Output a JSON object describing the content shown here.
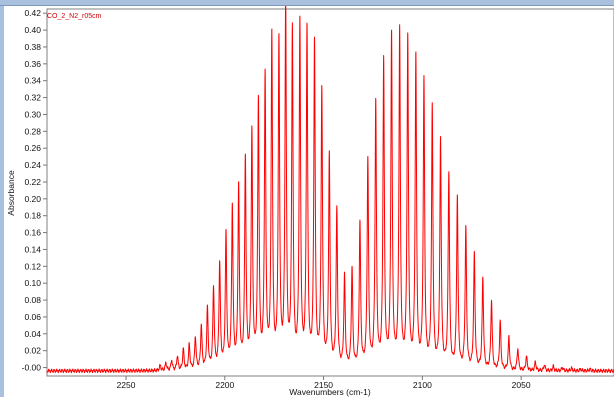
{
  "chart_data": {
    "type": "line",
    "series": [
      {
        "name": "CO_2_N2_r05cm",
        "color": "#ff0000"
      }
    ],
    "xlabel": "Wavenumbers (cm-1)",
    "ylabel": "Absorbance",
    "xlim": [
      2290,
      2003
    ],
    "ylim": [
      -0.01,
      0.425
    ],
    "x_ticks": [
      "2250",
      "2200",
      "2150",
      "2100",
      "2050"
    ],
    "y_ticks": [
      "-0.00",
      "0.02",
      "0.04",
      "0.06",
      "0.08",
      "0.10",
      "0.12",
      "0.14",
      "0.16",
      "0.18",
      "0.20",
      "0.22",
      "0.24",
      "0.26",
      "0.28",
      "0.30",
      "0.32",
      "0.34",
      "0.36",
      "0.38",
      "0.40",
      "0.42"
    ],
    "r_branch_peaks": [
      {
        "x": 2139.4,
        "y": 0.108
      },
      {
        "x": 2143.3,
        "y": 0.187
      },
      {
        "x": 2147.1,
        "y": 0.25
      },
      {
        "x": 2150.9,
        "y": 0.328
      },
      {
        "x": 2154.6,
        "y": 0.385
      },
      {
        "x": 2158.4,
        "y": 0.398
      },
      {
        "x": 2162.0,
        "y": 0.404
      },
      {
        "x": 2165.8,
        "y": 0.396
      },
      {
        "x": 2169.2,
        "y": 0.43
      },
      {
        "x": 2172.6,
        "y": 0.382
      },
      {
        "x": 2176.2,
        "y": 0.391
      },
      {
        "x": 2179.6,
        "y": 0.342
      },
      {
        "x": 2183.0,
        "y": 0.313
      },
      {
        "x": 2186.3,
        "y": 0.277
      },
      {
        "x": 2189.6,
        "y": 0.246
      },
      {
        "x": 2193.0,
        "y": 0.213
      },
      {
        "x": 2196.2,
        "y": 0.19
      },
      {
        "x": 2199.4,
        "y": 0.158
      },
      {
        "x": 2202.6,
        "y": 0.125
      },
      {
        "x": 2205.7,
        "y": 0.096
      },
      {
        "x": 2208.8,
        "y": 0.072
      },
      {
        "x": 2211.9,
        "y": 0.052
      },
      {
        "x": 2214.9,
        "y": 0.039
      },
      {
        "x": 2218.0,
        "y": 0.03
      },
      {
        "x": 2221.0,
        "y": 0.025
      },
      {
        "x": 2224.0,
        "y": 0.017
      },
      {
        "x": 2226.9,
        "y": 0.012
      },
      {
        "x": 2229.8,
        "y": 0.009
      },
      {
        "x": 2232.7,
        "y": 0.006
      }
    ],
    "p_branch_peaks": [
      {
        "x": 2135.6,
        "y": 0.118
      },
      {
        "x": 2131.6,
        "y": 0.172
      },
      {
        "x": 2127.6,
        "y": 0.246
      },
      {
        "x": 2123.6,
        "y": 0.313
      },
      {
        "x": 2119.6,
        "y": 0.362
      },
      {
        "x": 2115.6,
        "y": 0.393
      },
      {
        "x": 2111.5,
        "y": 0.398
      },
      {
        "x": 2107.4,
        "y": 0.389
      },
      {
        "x": 2103.3,
        "y": 0.366
      },
      {
        "x": 2099.2,
        "y": 0.338
      },
      {
        "x": 2095.0,
        "y": 0.307
      },
      {
        "x": 2090.8,
        "y": 0.27
      },
      {
        "x": 2086.6,
        "y": 0.231
      },
      {
        "x": 2082.3,
        "y": 0.203
      },
      {
        "x": 2078.0,
        "y": 0.167
      },
      {
        "x": 2073.7,
        "y": 0.136
      },
      {
        "x": 2069.4,
        "y": 0.108
      },
      {
        "x": 2065.0,
        "y": 0.082
      },
      {
        "x": 2060.6,
        "y": 0.058
      },
      {
        "x": 2056.2,
        "y": 0.039
      },
      {
        "x": 2051.7,
        "y": 0.026
      },
      {
        "x": 2047.3,
        "y": 0.017
      },
      {
        "x": 2042.8,
        "y": 0.01
      },
      {
        "x": 2038.2,
        "y": 0.007
      },
      {
        "x": 2033.7,
        "y": 0.005
      },
      {
        "x": 2029.1,
        "y": 0.004
      },
      {
        "x": 2024.5,
        "y": 0.003
      },
      {
        "x": 2019.9,
        "y": 0.002
      },
      {
        "x": 2015.2,
        "y": 0.002
      }
    ],
    "grid": false
  },
  "legend": {
    "series_label": "CO_2_N2_r05cm"
  }
}
